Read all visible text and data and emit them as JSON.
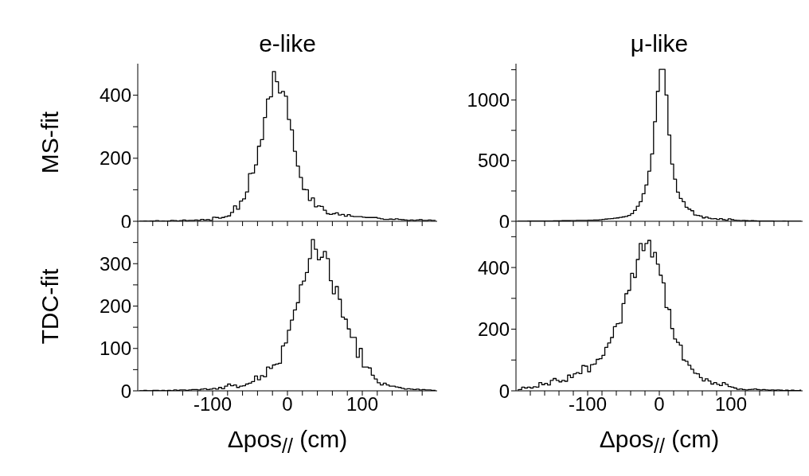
{
  "chart_data": [
    {
      "type": "step",
      "title": "e-like",
      "ylabel": "MS-fit",
      "tick_labels": "y",
      "color": "#000000",
      "xlim": [
        -200,
        200
      ],
      "ylim": [
        0,
        500
      ],
      "xticks": [
        {
          "value": -180,
          "label": null
        },
        {
          "value": -160,
          "label": null
        },
        {
          "value": -140,
          "label": null
        },
        {
          "value": -120,
          "label": null
        },
        {
          "value": -100,
          "label": null
        },
        {
          "value": -80,
          "label": null
        },
        {
          "value": -60,
          "label": null
        },
        {
          "value": -40,
          "label": null
        },
        {
          "value": -20,
          "label": null
        },
        {
          "value": 0,
          "label": null
        },
        {
          "value": 20,
          "label": null
        },
        {
          "value": 40,
          "label": null
        },
        {
          "value": 60,
          "label": null
        },
        {
          "value": 80,
          "label": null
        },
        {
          "value": 100,
          "label": null
        },
        {
          "value": 120,
          "label": null
        },
        {
          "value": 140,
          "label": null
        },
        {
          "value": 160,
          "label": null
        },
        {
          "value": 180,
          "label": null
        }
      ],
      "yticks": [
        0,
        {
          "value": 100,
          "label": null
        },
        200,
        {
          "value": 300,
          "label": null
        },
        400
      ],
      "x": [
        -198,
        -194,
        -190,
        -186,
        -182,
        -178,
        -174,
        -170,
        -166,
        -162,
        -158,
        -154,
        -150,
        -146,
        -142,
        -138,
        -134,
        -130,
        -126,
        -122,
        -118,
        -114,
        -110,
        -106,
        -102,
        -98,
        -94,
        -90,
        -86,
        -82,
        -78,
        -74,
        -70,
        -66,
        -62,
        -58,
        -54,
        -50,
        -46,
        -42,
        -38,
        -34,
        -30,
        -26,
        -22,
        -18,
        -14,
        -10,
        -6,
        -2,
        2,
        6,
        10,
        14,
        18,
        22,
        26,
        30,
        34,
        38,
        42,
        46,
        50,
        54,
        58,
        62,
        66,
        70,
        74,
        78,
        82,
        86,
        90,
        94,
        98,
        102,
        106,
        110,
        114,
        118,
        122,
        126,
        130,
        134,
        138,
        142,
        146,
        150,
        154,
        158,
        162,
        166,
        170,
        174,
        178,
        182,
        186,
        190,
        194,
        198
      ],
      "values": [
        0,
        0,
        1,
        0,
        1,
        1,
        2,
        0,
        1,
        0,
        1,
        3,
        2,
        1,
        2,
        4,
        2,
        3,
        3,
        4,
        3,
        6,
        4,
        5,
        3,
        13,
        12,
        10,
        12,
        15,
        17,
        28,
        49,
        38,
        64,
        71,
        93,
        151,
        153,
        179,
        238,
        259,
        329,
        388,
        395,
        475,
        443,
        407,
        412,
        397,
        323,
        290,
        222,
        175,
        139,
        101,
        100,
        66,
        74,
        46,
        49,
        47,
        35,
        24,
        22,
        24,
        27,
        20,
        22,
        16,
        21,
        16,
        15,
        15,
        15,
        13,
        12,
        12,
        12,
        12,
        10,
        8,
        6,
        6,
        7,
        6,
        8,
        6,
        5,
        4,
        3,
        4,
        3,
        4,
        5,
        3,
        3,
        4,
        3,
        3
      ]
    },
    {
      "type": "step",
      "title": "μ-like",
      "tick_labels": "y",
      "color": "#000000",
      "xlim": [
        -200,
        200
      ],
      "ylim": [
        0,
        1300
      ],
      "xticks": [
        {
          "value": -180,
          "label": null
        },
        {
          "value": -160,
          "label": null
        },
        {
          "value": -140,
          "label": null
        },
        {
          "value": -120,
          "label": null
        },
        {
          "value": -100,
          "label": null
        },
        {
          "value": -80,
          "label": null
        },
        {
          "value": -60,
          "label": null
        },
        {
          "value": -40,
          "label": null
        },
        {
          "value": -20,
          "label": null
        },
        {
          "value": 0,
          "label": null
        },
        {
          "value": 20,
          "label": null
        },
        {
          "value": 40,
          "label": null
        },
        {
          "value": 60,
          "label": null
        },
        {
          "value": 80,
          "label": null
        },
        {
          "value": 100,
          "label": null
        },
        {
          "value": 120,
          "label": null
        },
        {
          "value": 140,
          "label": null
        },
        {
          "value": 160,
          "label": null
        },
        {
          "value": 180,
          "label": null
        }
      ],
      "yticks": [
        0,
        {
          "value": 250,
          "label": null
        },
        500,
        {
          "value": 750,
          "label": null
        },
        1000,
        {
          "value": 1250,
          "label": null
        }
      ],
      "x": [
        -198,
        -194,
        -190,
        -186,
        -182,
        -178,
        -174,
        -170,
        -166,
        -162,
        -158,
        -154,
        -150,
        -146,
        -142,
        -138,
        -134,
        -130,
        -126,
        -122,
        -118,
        -114,
        -110,
        -106,
        -102,
        -98,
        -94,
        -90,
        -86,
        -82,
        -78,
        -74,
        -70,
        -66,
        -62,
        -58,
        -54,
        -50,
        -46,
        -42,
        -38,
        -34,
        -30,
        -26,
        -22,
        -18,
        -14,
        -10,
        -6,
        -2,
        2,
        6,
        10,
        14,
        18,
        22,
        26,
        30,
        34,
        38,
        42,
        46,
        50,
        54,
        58,
        62,
        66,
        70,
        74,
        78,
        82,
        86,
        90,
        94,
        98,
        102,
        106,
        110,
        114,
        118,
        122,
        126,
        130,
        134,
        138,
        142,
        146,
        150,
        154,
        158,
        162,
        166,
        170,
        174,
        178,
        182,
        186,
        190,
        194,
        198
      ],
      "values": [
        1,
        1,
        1,
        1,
        2,
        2,
        2,
        2,
        2,
        3,
        3,
        3,
        3,
        4,
        4,
        4,
        5,
        5,
        5,
        6,
        6,
        7,
        7,
        8,
        8,
        9,
        9,
        10,
        10,
        12,
        15,
        18,
        20,
        22,
        26,
        28,
        32,
        36,
        40,
        48,
        63,
        90,
        124,
        162,
        227,
        299,
        413,
        555,
        821,
        1072,
        1253,
        1253,
        1041,
        712,
        472,
        347,
        240,
        188,
        162,
        116,
        100,
        87,
        52,
        48,
        44,
        28,
        35,
        26,
        20,
        22,
        15,
        22,
        13,
        9,
        20,
        13,
        9,
        8,
        6,
        7,
        5,
        4,
        5,
        4,
        3,
        3,
        3,
        2,
        2,
        2,
        1,
        1,
        1,
        2,
        1,
        1,
        0,
        1,
        1,
        0
      ]
    },
    {
      "type": "step",
      "ylabel": "TDC-fit",
      "xlabel": "Δpos$_{//}$ (cm)",
      "color": "#000000",
      "xlim": [
        -200,
        200
      ],
      "ylim": [
        0,
        400
      ],
      "xticks": [
        {
          "value": -180,
          "label": null
        },
        {
          "value": -160,
          "label": null
        },
        {
          "value": -140,
          "label": null
        },
        {
          "value": -120,
          "label": null
        },
        {
          "value": -100,
          "label": "-100"
        },
        {
          "value": -80,
          "label": null
        },
        {
          "value": -60,
          "label": null
        },
        {
          "value": -40,
          "label": null
        },
        {
          "value": -20,
          "label": null
        },
        {
          "value": 0,
          "label": "0"
        },
        {
          "value": 20,
          "label": null
        },
        {
          "value": 40,
          "label": null
        },
        {
          "value": 60,
          "label": null
        },
        {
          "value": 80,
          "label": null
        },
        {
          "value": 100,
          "label": "100"
        },
        {
          "value": 120,
          "label": null
        },
        {
          "value": 140,
          "label": null
        },
        {
          "value": 160,
          "label": null
        },
        {
          "value": 180,
          "label": null
        }
      ],
      "yticks": [
        0,
        {
          "value": 50,
          "label": null
        },
        100,
        {
          "value": 150,
          "label": null
        },
        200,
        {
          "value": 250,
          "label": null
        },
        300,
        {
          "value": 350,
          "label": null
        }
      ],
      "x": [
        -198,
        -194,
        -190,
        -186,
        -182,
        -178,
        -174,
        -170,
        -166,
        -162,
        -158,
        -154,
        -150,
        -146,
        -142,
        -138,
        -134,
        -130,
        -126,
        -122,
        -118,
        -114,
        -110,
        -106,
        -102,
        -98,
        -94,
        -90,
        -86,
        -82,
        -78,
        -74,
        -70,
        -66,
        -62,
        -58,
        -54,
        -50,
        -46,
        -42,
        -38,
        -34,
        -30,
        -26,
        -22,
        -18,
        -14,
        -10,
        -6,
        -2,
        2,
        6,
        10,
        14,
        18,
        22,
        26,
        30,
        34,
        38,
        42,
        46,
        50,
        54,
        58,
        62,
        66,
        70,
        74,
        78,
        82,
        86,
        90,
        94,
        98,
        102,
        106,
        110,
        114,
        118,
        122,
        126,
        130,
        134,
        138,
        142,
        146,
        150,
        154,
        158,
        162,
        166,
        170,
        174,
        178,
        182,
        186,
        190,
        194,
        198
      ],
      "values": [
        0,
        0,
        1,
        0,
        0,
        1,
        1,
        0,
        1,
        0,
        1,
        0,
        2,
        1,
        2,
        2,
        1,
        2,
        3,
        3,
        2,
        4,
        5,
        3,
        4,
        6,
        4,
        8,
        5,
        11,
        16,
        12,
        14,
        8,
        11,
        12,
        16,
        18,
        22,
        35,
        26,
        36,
        33,
        56,
        53,
        61,
        63,
        65,
        106,
        113,
        143,
        167,
        191,
        208,
        250,
        259,
        279,
        312,
        357,
        334,
        309,
        315,
        329,
        312,
        260,
        229,
        246,
        216,
        174,
        169,
        146,
        126,
        126,
        79,
        100,
        56,
        56,
        54,
        37,
        28,
        19,
        14,
        18,
        14,
        11,
        11,
        9,
        8,
        6,
        4,
        5,
        4,
        3,
        4,
        2,
        3,
        2,
        2,
        1,
        1
      ]
    },
    {
      "type": "step",
      "xlabel": "Δpos$_{//}$ (cm)",
      "color": "#000000",
      "xlim": [
        -200,
        200
      ],
      "ylim": [
        0,
        550
      ],
      "xticks": [
        {
          "value": -180,
          "label": null
        },
        {
          "value": -160,
          "label": null
        },
        {
          "value": -140,
          "label": null
        },
        {
          "value": -120,
          "label": null
        },
        {
          "value": -100,
          "label": "-100"
        },
        {
          "value": -80,
          "label": null
        },
        {
          "value": -60,
          "label": null
        },
        {
          "value": -40,
          "label": null
        },
        {
          "value": -20,
          "label": null
        },
        {
          "value": 0,
          "label": "0"
        },
        {
          "value": 20,
          "label": null
        },
        {
          "value": 40,
          "label": null
        },
        {
          "value": 60,
          "label": null
        },
        {
          "value": 80,
          "label": null
        },
        {
          "value": 100,
          "label": "100"
        },
        {
          "value": 120,
          "label": null
        },
        {
          "value": 140,
          "label": null
        },
        {
          "value": 160,
          "label": null
        },
        {
          "value": 180,
          "label": null
        }
      ],
      "yticks": [
        0,
        {
          "value": 100,
          "label": null
        },
        200,
        {
          "value": 300,
          "label": null
        },
        400,
        {
          "value": 500,
          "label": null
        }
      ],
      "x": [
        -198,
        -194,
        -190,
        -186,
        -182,
        -178,
        -174,
        -170,
        -166,
        -162,
        -158,
        -154,
        -150,
        -146,
        -142,
        -138,
        -134,
        -130,
        -126,
        -122,
        -118,
        -114,
        -110,
        -106,
        -102,
        -98,
        -94,
        -90,
        -86,
        -82,
        -78,
        -74,
        -70,
        -66,
        -62,
        -58,
        -54,
        -50,
        -46,
        -42,
        -38,
        -34,
        -30,
        -26,
        -22,
        -18,
        -14,
        -10,
        -6,
        -2,
        2,
        6,
        10,
        14,
        18,
        22,
        26,
        30,
        34,
        38,
        42,
        46,
        50,
        54,
        58,
        62,
        66,
        70,
        74,
        78,
        82,
        86,
        90,
        94,
        98,
        102,
        106,
        110,
        114,
        118,
        122,
        126,
        130,
        134,
        138,
        142,
        146,
        150,
        154,
        158,
        162,
        166,
        170,
        174,
        178,
        182,
        186,
        190,
        194,
        198
      ],
      "values": [
        3,
        4,
        12,
        9,
        12,
        9,
        13,
        12,
        27,
        20,
        24,
        19,
        34,
        40,
        34,
        29,
        34,
        31,
        51,
        43,
        55,
        59,
        56,
        82,
        80,
        62,
        85,
        87,
        102,
        104,
        115,
        141,
        155,
        173,
        208,
        218,
        220,
        283,
        315,
        326,
        381,
        368,
        426,
        478,
        455,
        478,
        488,
        434,
        449,
        411,
        375,
        350,
        270,
        264,
        202,
        168,
        157,
        148,
        100,
        96,
        83,
        70,
        57,
        55,
        43,
        32,
        39,
        32,
        22,
        27,
        21,
        17,
        27,
        21,
        14,
        12,
        9,
        5,
        6,
        4,
        3,
        4,
        5,
        6,
        4,
        3,
        4,
        3,
        2,
        3,
        2,
        3,
        2,
        1,
        2,
        1,
        2,
        1,
        1,
        2
      ]
    }
  ]
}
